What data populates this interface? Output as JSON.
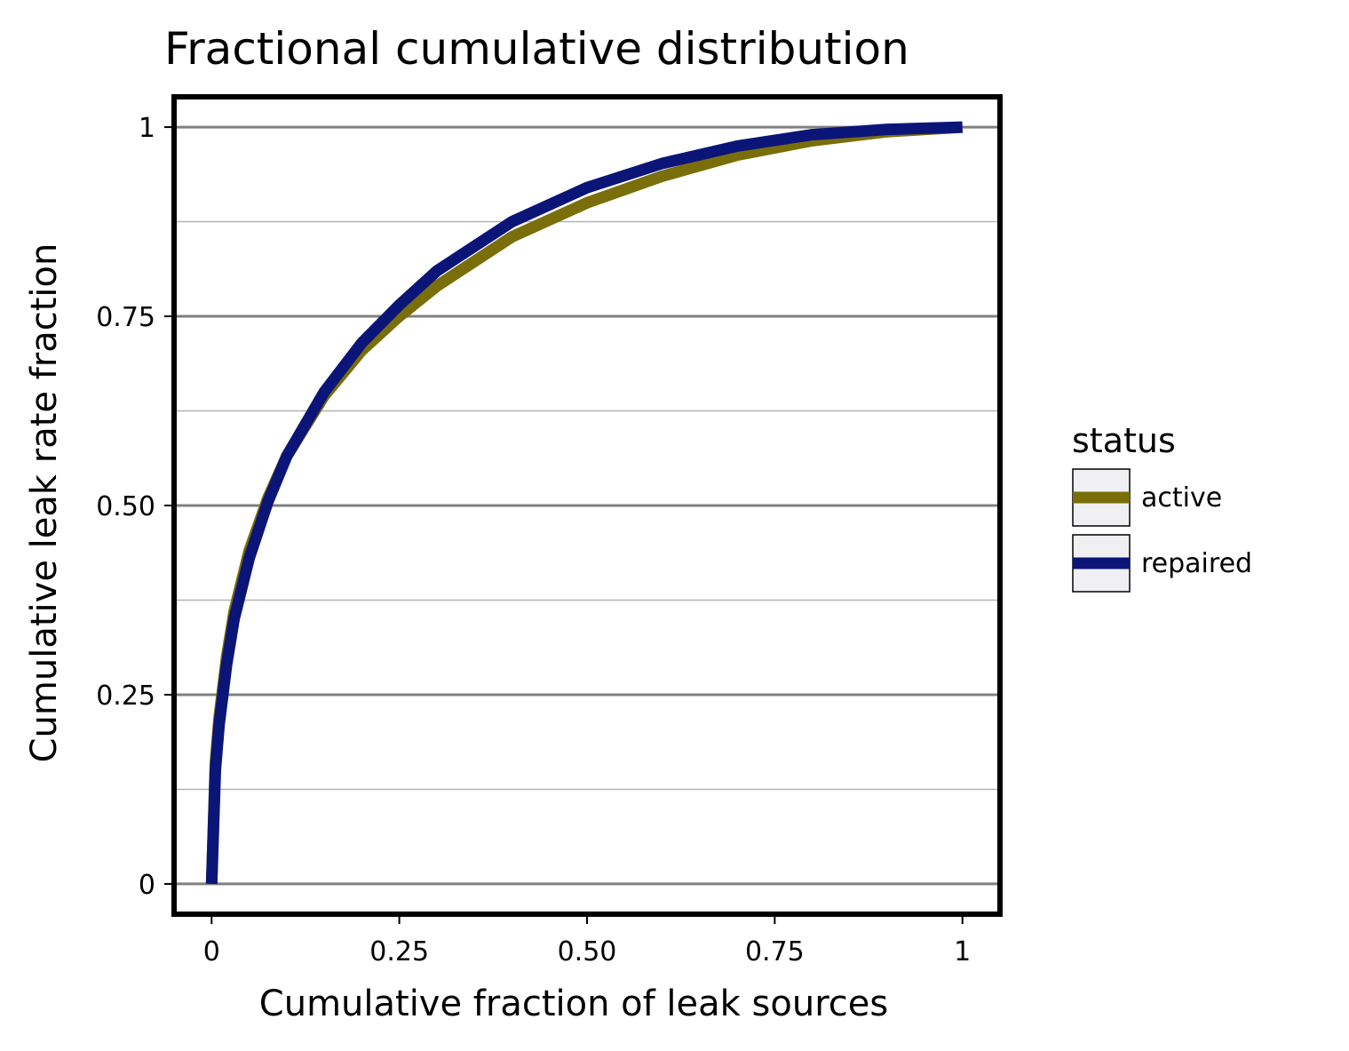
{
  "chart_data": {
    "type": "line",
    "title": "Fractional cumulative distribution",
    "xlabel": "Cumulative fraction of leak sources",
    "ylabel": "Cumulative leak rate fraction",
    "xlim": [
      -0.05,
      1.05
    ],
    "ylim": [
      -0.04,
      1.04
    ],
    "x_ticks": [
      0,
      0.25,
      0.5,
      0.75,
      1
    ],
    "x_tick_labels": [
      "0",
      "0.25",
      "0.50",
      "0.75",
      "1"
    ],
    "y_ticks": [
      0,
      0.25,
      0.5,
      0.75,
      1
    ],
    "y_tick_labels": [
      "0",
      "0.25",
      "0.50",
      "0.75",
      "1"
    ],
    "y_minor_ticks": [
      0.125,
      0.375,
      0.625,
      0.875
    ],
    "grid": true,
    "legend": {
      "title": "status",
      "placement": "right"
    },
    "series": [
      {
        "name": "active",
        "color": "#7a6e0a",
        "x": [
          0,
          0.005,
          0.01,
          0.02,
          0.03,
          0.05,
          0.075,
          0.1,
          0.15,
          0.2,
          0.25,
          0.3,
          0.4,
          0.5,
          0.6,
          0.7,
          0.8,
          0.9,
          1.0
        ],
        "y": [
          0,
          0.16,
          0.22,
          0.3,
          0.36,
          0.44,
          0.51,
          0.565,
          0.645,
          0.705,
          0.75,
          0.79,
          0.855,
          0.9,
          0.935,
          0.963,
          0.982,
          0.994,
          1.0
        ]
      },
      {
        "name": "repaired",
        "color": "#0b1578",
        "x": [
          0,
          0.005,
          0.01,
          0.02,
          0.03,
          0.05,
          0.075,
          0.1,
          0.15,
          0.2,
          0.25,
          0.3,
          0.4,
          0.5,
          0.6,
          0.7,
          0.8,
          0.9,
          1.0
        ],
        "y": [
          0,
          0.15,
          0.21,
          0.29,
          0.35,
          0.43,
          0.505,
          0.565,
          0.65,
          0.715,
          0.765,
          0.81,
          0.875,
          0.92,
          0.952,
          0.975,
          0.99,
          0.997,
          1.0
        ]
      }
    ]
  },
  "colors": {
    "major_grid": "#808080",
    "minor_grid": "#b3b3b3",
    "panel_border": "#000000",
    "legend_key_fill": "#f0f0f2"
  }
}
